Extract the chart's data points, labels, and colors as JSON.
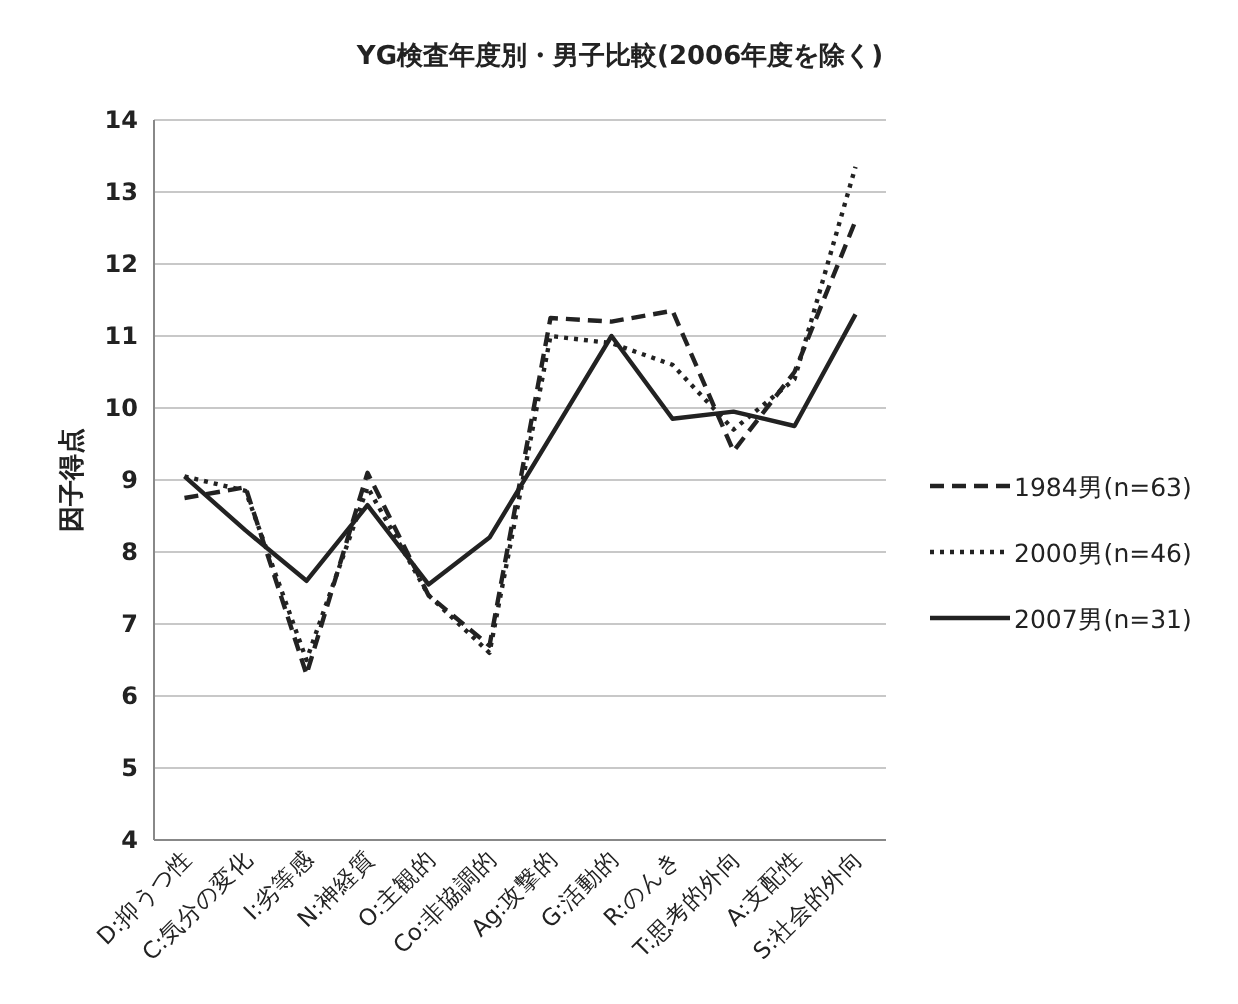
{
  "chart_data": {
    "type": "line",
    "title": "YG検査年度別・男子比較(2006年度を除く)",
    "ylabel": "因子得点",
    "categories": [
      "D:抑うつ性",
      "C:気分の変化",
      "I:劣等感",
      "N:神経質",
      "O:主観的",
      "Co:非協調的",
      "Ag:攻撃的",
      "G:活動的",
      "R:のんき",
      "T:思考的外向",
      "A:支配性",
      "S:社会的外向"
    ],
    "series": [
      {
        "name": "1984男(n=63)",
        "color": "#222222",
        "line_style": "dashed",
        "values": [
          8.75,
          8.9,
          6.3,
          9.1,
          7.4,
          6.7,
          11.25,
          11.2,
          11.35,
          9.4,
          10.5,
          12.6
        ]
      },
      {
        "name": "2000男(n=46)",
        "color": "#222222",
        "line_style": "dotted",
        "values": [
          9.05,
          8.85,
          6.5,
          8.9,
          7.4,
          6.6,
          11.0,
          10.9,
          10.6,
          9.7,
          10.4,
          13.35
        ]
      },
      {
        "name": "2007男(n=31)",
        "color": "#222222",
        "line_style": "solid",
        "values": [
          9.05,
          8.3,
          7.6,
          8.65,
          7.55,
          8.2,
          9.6,
          11.0,
          9.85,
          9.95,
          9.75,
          11.3
        ]
      }
    ],
    "ylim": [
      4,
      14
    ],
    "yticks": [
      4,
      5,
      6,
      7,
      8,
      9,
      10,
      11,
      12,
      13,
      14
    ],
    "grid": "y",
    "legend": "right",
    "marker": "none"
  }
}
